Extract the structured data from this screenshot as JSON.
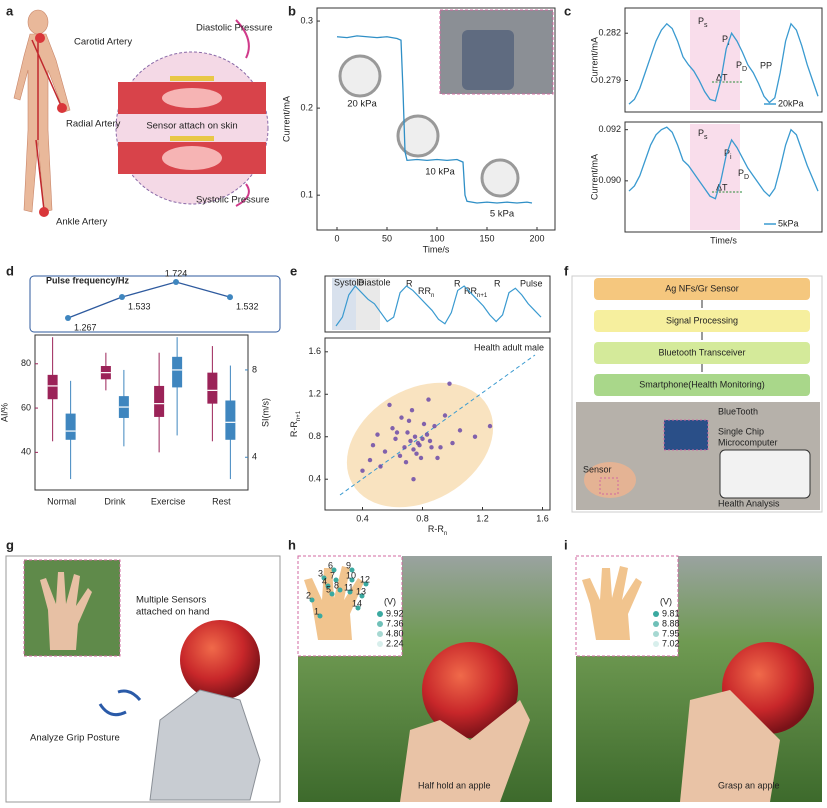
{
  "panels": {
    "letters": [
      "a",
      "b",
      "c",
      "d",
      "e",
      "f",
      "g",
      "h",
      "i"
    ],
    "a": {
      "carotid": "Carotid Artery",
      "diastolic": "Diastolic Pressure",
      "radial": "Radial Artery",
      "sensor": "Sensor attach on skin",
      "systolic": "Systolic Pressure",
      "ankle": "Ankle Artery"
    },
    "b": {
      "p20": "20 kPa",
      "p10": "10 kPa",
      "p5": "5 kPa"
    },
    "c": {
      "ps": {
        "main": "P",
        "sub": "s"
      },
      "pi": {
        "main": "P",
        "sub": "i"
      },
      "pd": {
        "main": "P",
        "sub": "D"
      },
      "pp": "PP",
      "dt": "ΔT",
      "ps2": {
        "main": "P",
        "sub": "s"
      },
      "pi2": {
        "main": "P",
        "sub": "i"
      },
      "pd2": {
        "main": "P",
        "sub": "D"
      },
      "dt2": "ΔT"
    },
    "e": {
      "systole": "Systole",
      "diastole": "Diastole",
      "r": "R",
      "rrn": {
        "main": "RR",
        "sub": "n"
      },
      "rrn1": {
        "main": "RR",
        "sub": "n+1"
      },
      "pulse": "Pulse"
    },
    "f": {
      "steps": [
        "Ag NFs/Gr Sensor",
        "Signal Processing",
        "Bluetooth Transceiver",
        "Smartphone(Health Monitoring)"
      ],
      "bluetooth": "BlueTooth",
      "mcu": [
        "Single Chip",
        "Microcomputer"
      ],
      "sensor": "Sensor",
      "analysis": "Health Analysis"
    },
    "g": {
      "multi": [
        "Multiple Sensors",
        "attached on hand"
      ],
      "analyze": "Analyze Grip Posture"
    },
    "h": {
      "unit": "(V)",
      "scale": [
        "9.92",
        "7.36",
        "4.80",
        "2.24"
      ],
      "fingers": [
        "1",
        "2",
        "3",
        "4",
        "5",
        "6",
        "7",
        "8",
        "9",
        "10",
        "11",
        "12",
        "13",
        "14"
      ],
      "caption": "Half hold an apple"
    },
    "i": {
      "unit": "(V)",
      "scale": [
        "9.81",
        "8.88",
        "7.95",
        "7.02"
      ],
      "caption": "Grasp an apple"
    }
  },
  "chart_data": [
    {
      "type": "line",
      "xlabel": "Time/s",
      "ylabel": "Current/mA",
      "color": "#2f8fc6",
      "x": [
        0,
        10,
        20,
        30,
        40,
        50,
        60,
        64,
        66,
        68,
        70,
        80,
        90,
        100,
        110,
        120,
        126,
        128,
        130,
        140,
        150,
        160,
        170,
        180,
        190,
        195
      ],
      "values": [
        0.282,
        0.281,
        0.283,
        0.282,
        0.281,
        0.282,
        0.28,
        0.278,
        0.22,
        0.15,
        0.14,
        0.141,
        0.14,
        0.141,
        0.14,
        0.141,
        0.138,
        0.1,
        0.093,
        0.091,
        0.092,
        0.091,
        0.092,
        0.091,
        0.092,
        0.091
      ],
      "xlim": [
        -20,
        218
      ],
      "ylim": [
        0.06,
        0.315
      ],
      "xticks": [
        0,
        50,
        100,
        150,
        200
      ],
      "yticks": [
        0.1,
        0.2,
        0.3
      ]
    },
    {
      "type": "line",
      "ylabel": "Current/mA",
      "ylim": [
        0.277,
        0.2836
      ],
      "yticks": [
        0.279,
        0.282
      ],
      "series": [
        {
          "name": "20kPa",
          "color": "#3a9ad0",
          "values": [
            0.2775,
            0.2778,
            0.2785,
            0.2795,
            0.2805,
            0.2815,
            0.2822,
            0.2826,
            0.2823,
            0.2815,
            0.2805,
            0.28,
            0.2796,
            0.279,
            0.2783,
            0.2778,
            0.2777,
            0.279,
            0.281,
            0.282,
            0.2815,
            0.2808,
            0.28,
            0.2795,
            0.2788,
            0.278,
            0.2776,
            0.2779,
            0.2795,
            0.2815,
            0.2826,
            0.2822,
            0.2812,
            0.28,
            0.279,
            0.278
          ]
        }
      ]
    },
    {
      "type": "line",
      "xlabel": "Time/s",
      "ylabel": "Current/mA",
      "ylim": [
        0.088,
        0.0923
      ],
      "yticks": [
        {
          "value": 0.09,
          "label": "0.090"
        },
        0.092
      ],
      "series": [
        {
          "name": "5kPa",
          "color": "#3a9ad0",
          "values": [
            0.0896,
            0.0898,
            0.0902,
            0.0908,
            0.0914,
            0.0918,
            0.092,
            0.0921,
            0.0919,
            0.0914,
            0.0908,
            0.0906,
            0.0903,
            0.09,
            0.0897,
            0.0894,
            0.0893,
            0.09,
            0.091,
            0.0916,
            0.0913,
            0.0909,
            0.0905,
            0.0902,
            0.0899,
            0.0896,
            0.0894,
            0.0897,
            0.0905,
            0.0914,
            0.092,
            0.0918,
            0.0912,
            0.0906,
            0.0901,
            0.0896
          ]
        }
      ]
    },
    {
      "type": "line",
      "title": "Pulse frequency/Hz",
      "color": "#2e5a9e",
      "values": [
        1.267,
        1.533,
        1.724,
        1.532
      ]
    },
    {
      "type": "box",
      "categories": [
        "Normal",
        "Drink",
        "Exercise",
        "Rest"
      ],
      "ylabel": "AI/%",
      "y2label": "SI(m/s)",
      "ylim": [
        23,
        93
      ],
      "yticks": [
        40,
        60,
        80
      ],
      "y2lim": [
        2.5,
        9.6
      ],
      "y2ticks": [
        4,
        8
      ],
      "series": [
        {
          "color": "#9b2358",
          "median": [
            70,
            76,
            62,
            68
          ],
          "q1": [
            64,
            73,
            56,
            62
          ],
          "q3": [
            75,
            79,
            70,
            76
          ],
          "min": [
            45,
            68,
            40,
            45
          ],
          "max": [
            92,
            85,
            85,
            88
          ]
        },
        {
          "color": "#3f86bf",
          "axis": "y2",
          "median": [
            5.2,
            6.3,
            8,
            5.6
          ],
          "q1": [
            4.8,
            5.8,
            7.2,
            4.8
          ],
          "q3": [
            6,
            6.8,
            8.6,
            6.6
          ],
          "min": [
            3,
            4.5,
            5,
            3
          ],
          "max": [
            7.5,
            8,
            9.5,
            8.2
          ]
        }
      ]
    },
    {
      "type": "scatter",
      "label": "Health adult male",
      "color": "#6c4aa8",
      "xlabel": {
        "main": "R-R",
        "sub": "n"
      },
      "ylabel": {
        "main": "R-R",
        "sub": "n+1"
      },
      "xlim": [
        0.15,
        1.65
      ],
      "ylim": [
        0.11,
        1.73
      ],
      "xticks": [
        0.4,
        0.8,
        1.2,
        1.6
      ],
      "yticks": [
        0.4,
        0.8,
        1.2,
        1.6
      ],
      "x": [
        0.72,
        0.75,
        0.78,
        0.7,
        0.68,
        0.8,
        0.83,
        0.74,
        0.77,
        0.65,
        0.88,
        0.6,
        0.92,
        0.55,
        0.71,
        0.79,
        0.85,
        0.5,
        0.95,
        0.45,
        1.0,
        0.62,
        0.73,
        0.76,
        0.81,
        0.69,
        0.58,
        1.05,
        0.4,
        0.9,
        0.66,
        0.84,
        1.15,
        0.52,
        0.98,
        0.74,
        0.86,
        0.63,
        1.25,
        0.47
      ],
      "values": [
        0.76,
        0.8,
        0.72,
        0.84,
        0.7,
        0.78,
        0.82,
        0.68,
        0.74,
        0.62,
        0.9,
        0.88,
        0.7,
        0.66,
        0.95,
        0.6,
        0.76,
        0.82,
        1.0,
        0.58,
        0.74,
        0.78,
        1.05,
        0.64,
        0.92,
        0.56,
        1.1,
        0.86,
        0.48,
        0.6,
        0.98,
        1.15,
        0.8,
        0.52,
        1.3,
        0.4,
        0.7,
        0.84,
        0.9,
        0.72
      ]
    },
    {
      "type": "line",
      "color": "#3a9ad0",
      "values": [
        0.1,
        0.3,
        0.8,
        1.0,
        0.85,
        0.7,
        0.6,
        0.4,
        0.2,
        0.3,
        0.85,
        1.0,
        0.9,
        0.75,
        0.6,
        0.45,
        0.25,
        0.15,
        0.4,
        0.9,
        1.0,
        0.85,
        0.7,
        0.55,
        0.35,
        0.2,
        0.35,
        0.85,
        0.95,
        0.8,
        0.6,
        0.45,
        0.3
      ]
    }
  ]
}
